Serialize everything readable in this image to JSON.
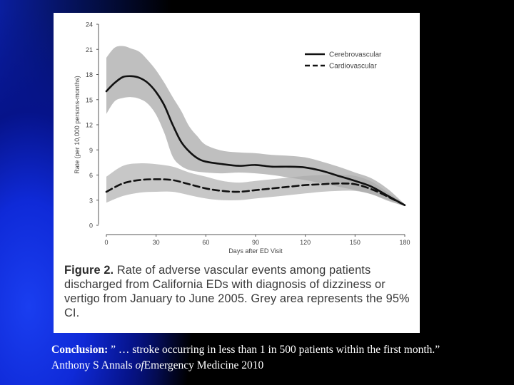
{
  "slide": {
    "caption_label": "Figure 2.",
    "caption_text": "Rate of adverse vascular events among patients discharged from California EDs with diagnosis of dizziness or vertigo from January to June 2005. Grey area represents the 95% CI.",
    "conclusion_label": "Conclusion:",
    "conclusion_text": "” … stroke occurring in less than 1 in 500 patients within the first month.” Anthony S Annals",
    "conclusion_of": "of",
    "conclusion_tail": "Emergency Medicine 2010"
  },
  "colors": {
    "background": "#000000",
    "band": "#a9a9a9",
    "line": "#111111"
  },
  "chart_data": {
    "type": "line",
    "title": "",
    "xlabel": "Days after ED Visit",
    "ylabel": "Rate (per 10,000 persons-months)",
    "xlim": [
      0,
      180
    ],
    "ylim": [
      0,
      24
    ],
    "xticks": [
      "0",
      "30",
      "60",
      "90",
      "120",
      "150",
      "180"
    ],
    "yticks": [
      "0",
      "3",
      "6",
      "9",
      "12",
      "15",
      "18",
      "21",
      "24"
    ],
    "grid": false,
    "legend_position": "top-right",
    "series": [
      {
        "name": "Cerebrovascular",
        "style": "solid",
        "x": [
          0,
          5,
          10,
          15,
          20,
          25,
          30,
          35,
          40,
          45,
          50,
          55,
          60,
          70,
          80,
          90,
          100,
          110,
          120,
          130,
          140,
          150,
          160,
          170,
          180
        ],
        "y": [
          16.0,
          17.0,
          17.7,
          17.8,
          17.6,
          17.0,
          15.9,
          14.3,
          12.0,
          10.0,
          8.8,
          8.0,
          7.6,
          7.3,
          7.1,
          7.2,
          7.0,
          7.0,
          6.9,
          6.5,
          5.9,
          5.3,
          4.6,
          3.5,
          2.4
        ],
        "ci_lower": [
          13.3,
          14.8,
          15.2,
          15.3,
          15.1,
          14.5,
          13.2,
          11.0,
          8.2,
          7.1,
          6.6,
          6.4,
          6.3,
          6.2,
          6.3,
          6.2,
          6.0,
          5.7,
          5.4,
          5.0,
          4.6,
          4.2,
          3.7,
          3.0,
          2.3
        ],
        "ci_upper": [
          20.0,
          21.2,
          21.4,
          21.1,
          20.7,
          19.7,
          18.5,
          17.0,
          15.3,
          13.7,
          11.8,
          10.6,
          9.6,
          8.9,
          8.7,
          8.6,
          8.4,
          8.3,
          8.1,
          7.6,
          7.0,
          6.3,
          5.6,
          4.3,
          2.5
        ]
      },
      {
        "name": "Cardiovascular",
        "style": "dashed",
        "x": [
          0,
          10,
          20,
          30,
          40,
          50,
          60,
          70,
          80,
          90,
          100,
          110,
          120,
          130,
          140,
          150,
          160,
          170,
          180
        ],
        "y": [
          4.0,
          5.0,
          5.4,
          5.5,
          5.4,
          4.9,
          4.4,
          4.1,
          4.0,
          4.2,
          4.4,
          4.6,
          4.8,
          4.9,
          5.0,
          4.9,
          4.3,
          3.4,
          2.4
        ],
        "ci_lower": [
          2.7,
          3.5,
          3.9,
          4.0,
          4.0,
          3.6,
          3.2,
          3.0,
          3.0,
          3.2,
          3.4,
          3.6,
          3.8,
          4.0,
          4.1,
          4.1,
          3.7,
          2.9,
          2.3
        ],
        "ci_upper": [
          5.8,
          7.1,
          7.4,
          7.3,
          7.0,
          6.3,
          5.8,
          5.3,
          5.1,
          5.3,
          5.5,
          5.7,
          5.9,
          6.0,
          6.0,
          5.9,
          5.2,
          3.9,
          2.5
        ]
      }
    ]
  }
}
